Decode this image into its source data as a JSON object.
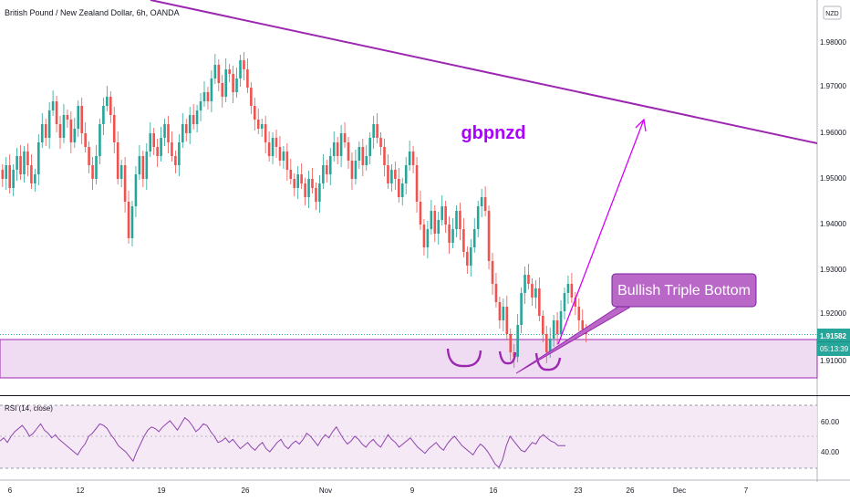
{
  "header": {
    "symbol_title": "British Pound / New Zealand Dollar, 6h, OANDA"
  },
  "currency_badge": "NZD",
  "price_axis": {
    "labels": [
      "1.98000",
      "1.97000",
      "1.96000",
      "1.95000",
      "1.94000",
      "1.93000",
      "1.92000",
      "1.91000"
    ],
    "last_price": "1.91582",
    "countdown": "05:13:39",
    "last_price_color": "#26a69a"
  },
  "annotations": {
    "title_text": "gbpnzd",
    "callout_text": "Bullish Triple Bottom",
    "accent_color": "#9c27b0"
  },
  "rsi": {
    "label": "RSI (14, close)",
    "levels": [
      "60.00",
      "40.00"
    ]
  },
  "time_axis": [
    "6",
    "12",
    "19",
    "26",
    "Nov",
    "9",
    "16",
    "23",
    "26",
    "Dec",
    "7"
  ],
  "chart_data": {
    "type": "candlestick",
    "title": "British Pound / New Zealand Dollar, 6h, OANDA",
    "ylim": [
      1.905,
      1.982
    ],
    "up_color": "#26a69a",
    "down_color": "#ef5350",
    "x_ticks": [
      "6",
      "12",
      "19",
      "26",
      "Nov",
      "9",
      "16",
      "23",
      "26",
      "Dec",
      "7"
    ],
    "support_zone": [
      1.9063,
      1.9152
    ],
    "trendline": {
      "from": 1.9945,
      "to": 1.957
    },
    "close": [
      1.95,
      1.953,
      1.948,
      1.952,
      1.955,
      1.951,
      1.956,
      1.953,
      1.949,
      1.951,
      1.958,
      1.962,
      1.959,
      1.965,
      1.967,
      1.962,
      1.959,
      1.964,
      1.963,
      1.958,
      1.961,
      1.966,
      1.96,
      1.957,
      1.953,
      1.95,
      1.955,
      1.962,
      1.966,
      1.968,
      1.964,
      1.958,
      1.95,
      1.953,
      1.945,
      1.937,
      1.944,
      1.951,
      1.955,
      1.95,
      1.956,
      1.96,
      1.957,
      1.955,
      1.959,
      1.962,
      1.958,
      1.955,
      1.953,
      1.958,
      1.962,
      1.96,
      1.964,
      1.962,
      1.965,
      1.967,
      1.969,
      1.967,
      1.972,
      1.975,
      1.971,
      1.968,
      1.974,
      1.973,
      1.969,
      1.972,
      1.976,
      1.974,
      1.97,
      1.966,
      1.963,
      1.961,
      1.962,
      1.958,
      1.955,
      1.959,
      1.957,
      1.954,
      1.956,
      1.952,
      1.95,
      1.948,
      1.951,
      1.949,
      1.946,
      1.95,
      1.948,
      1.945,
      1.949,
      1.953,
      1.951,
      1.955,
      1.958,
      1.955,
      1.96,
      1.958,
      1.954,
      1.95,
      1.954,
      1.957,
      1.953,
      1.955,
      1.959,
      1.962,
      1.959,
      1.957,
      1.953,
      1.949,
      1.952,
      1.95,
      1.946,
      1.949,
      1.953,
      1.956,
      1.953,
      1.945,
      1.94,
      1.935,
      1.939,
      1.943,
      1.938,
      1.941,
      1.944,
      1.94,
      1.936,
      1.939,
      1.943,
      1.939,
      1.934,
      1.931,
      1.935,
      1.939,
      1.944,
      1.946,
      1.943,
      1.932,
      1.927,
      1.923,
      1.919,
      1.922,
      1.916,
      1.912,
      1.911,
      1.918,
      1.925,
      1.929,
      1.927,
      1.924,
      1.926,
      1.92,
      1.916,
      1.912,
      1.915,
      1.919,
      1.916,
      1.921,
      1.925,
      1.927,
      1.924,
      1.922,
      1.919,
      1.917,
      1.916
    ],
    "rsi_values": [
      47,
      49,
      46,
      50,
      53,
      55,
      57,
      54,
      50,
      52,
      55,
      58,
      54,
      52,
      49,
      51,
      48,
      46,
      44,
      42,
      40,
      38,
      42,
      45,
      50,
      52,
      55,
      58,
      57,
      55,
      51,
      48,
      44,
      42,
      40,
      37,
      34,
      40,
      45,
      50,
      54,
      56,
      55,
      53,
      56,
      58,
      60,
      57,
      54,
      58,
      62,
      60,
      57,
      53,
      55,
      58,
      57,
      53,
      50,
      46,
      47,
      49,
      46,
      48,
      45,
      42,
      44,
      46,
      43,
      41,
      44,
      46,
      42,
      40,
      43,
      46,
      48,
      44,
      42,
      45,
      47,
      45,
      48,
      52,
      50,
      47,
      44,
      48,
      51,
      49,
      53,
      56,
      52,
      48,
      45,
      47,
      50,
      48,
      45,
      43,
      46,
      48,
      45,
      43,
      47,
      51,
      48,
      46,
      43,
      45,
      47,
      49,
      46,
      43,
      41,
      39,
      42,
      44,
      46,
      43,
      41,
      45,
      48,
      50,
      47,
      44,
      42,
      40,
      38,
      42,
      45,
      43,
      40,
      36,
      32,
      30,
      35,
      44,
      50,
      47,
      44,
      41,
      40,
      43,
      46,
      45,
      49,
      51,
      49,
      47,
      46,
      44,
      44,
      44
    ]
  }
}
